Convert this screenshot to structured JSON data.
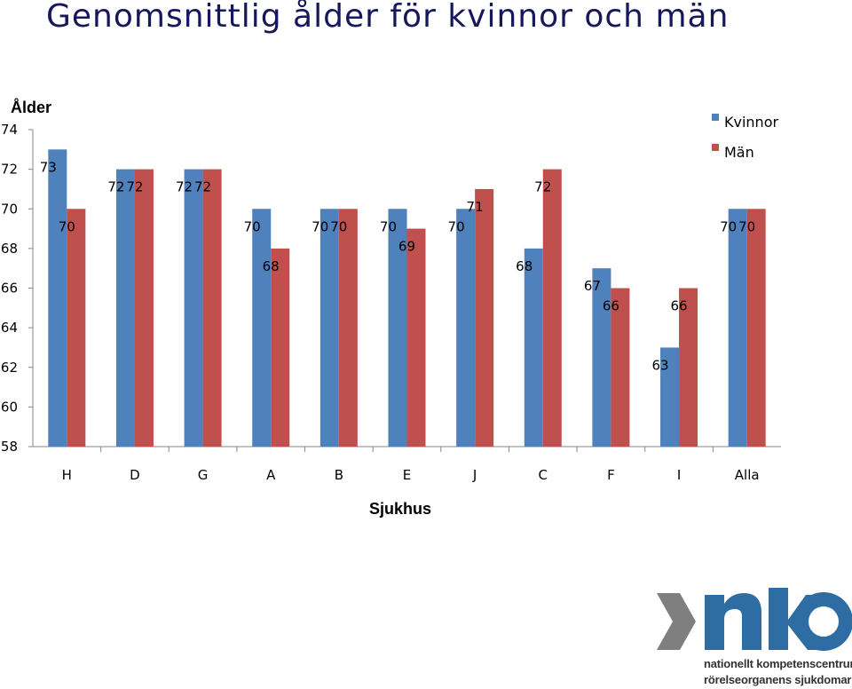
{
  "page": {
    "title": "Genomsnittlig ålder för kvinnor och män"
  },
  "colors": {
    "kvinnor": "#4f81bd",
    "man": "#c0504d",
    "logo_blue": "#2e6da4",
    "logo_gray": "#7f7f7f"
  },
  "chart_data": {
    "type": "bar",
    "title": "",
    "xlabel": "Sjukhus",
    "ylabel": "Ålder",
    "ylim": [
      58,
      74
    ],
    "yticks": [
      58,
      60,
      62,
      64,
      66,
      68,
      70,
      72,
      74
    ],
    "categories": [
      "H",
      "D",
      "G",
      "A",
      "B",
      "E",
      "J",
      "C",
      "F",
      "I",
      "Alla"
    ],
    "series": [
      {
        "name": "Kvinnor",
        "values": [
          73,
          72,
          72,
          70,
          70,
          70,
          70,
          68,
          67,
          63,
          70
        ]
      },
      {
        "name": "Män",
        "values": [
          70,
          72,
          72,
          68,
          70,
          69,
          71,
          72,
          66,
          66,
          70
        ]
      }
    ],
    "grid": false,
    "legend": "top-right",
    "data_labels": true
  },
  "logo": {
    "mark": "NKO",
    "line1": "nationellt kompetenscentrum",
    "line2": "rörelseorganens sjukdomar"
  }
}
